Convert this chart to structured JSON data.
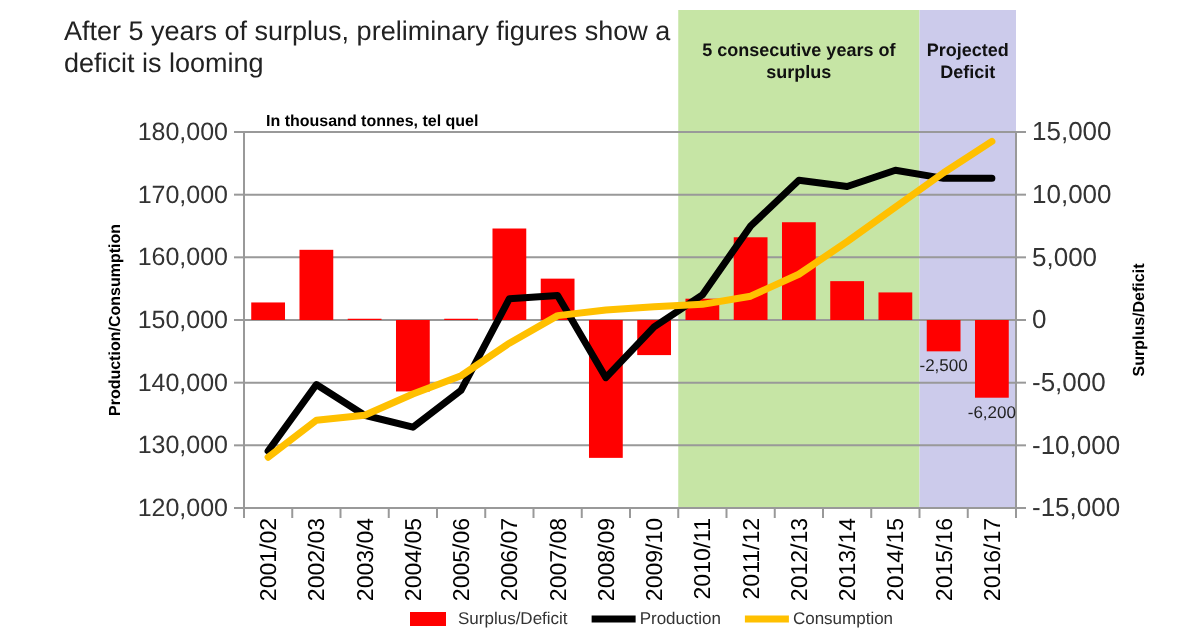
{
  "chart_data": {
    "type": "bar",
    "title": "After 5 years of surplus, preliminary figures show a deficit is looming",
    "annotations": [
      "In thousand tonnes, tel quel"
    ],
    "ylabel": "Production/Consumption",
    "y2label": "Surplus/Deficit",
    "categories": [
      "2001/02",
      "2002/03",
      "2003/04",
      "2004/05",
      "2005/06",
      "2006/07",
      "2007/08",
      "2008/09",
      "2009/10",
      "2010/11",
      "2011/12",
      "2012/13",
      "2013/14",
      "2014/15",
      "2015/16",
      "2016/17"
    ],
    "series": [
      {
        "name": "Surplus/Deficit",
        "axis": "y2",
        "color": "#ff0000",
        "values": [
          1400,
          5600,
          100,
          -5700,
          100,
          7300,
          3300,
          -11000,
          -2800,
          1700,
          6600,
          7800,
          3100,
          2200,
          -2500,
          -6200
        ],
        "value_labels": [
          null,
          null,
          null,
          null,
          null,
          null,
          null,
          null,
          null,
          null,
          null,
          null,
          null,
          null,
          "-2,500",
          "-6,200"
        ]
      },
      {
        "name": "Production",
        "type": "line",
        "color": "#000000",
        "values": [
          129100,
          139700,
          134800,
          132900,
          138800,
          153400,
          153900,
          140800,
          148900,
          154000,
          165000,
          172300,
          171300,
          173900,
          172600,
          172600
        ]
      },
      {
        "name": "Consumption",
        "type": "line",
        "color": "#ffc000",
        "values": [
          128100,
          134000,
          134800,
          138200,
          141100,
          146300,
          150700,
          151600,
          152100,
          152500,
          153800,
          157300,
          162500,
          168000,
          173500,
          178500
        ]
      }
    ],
    "ylim": [
      120000,
      180000
    ],
    "yticks": [
      {
        "value": 120000,
        "label": "120,000"
      },
      {
        "value": 130000,
        "label": "130,000"
      },
      {
        "value": 140000,
        "label": "140,000"
      },
      {
        "value": 150000,
        "label": "150,000"
      },
      {
        "value": 160000,
        "label": "160,000"
      },
      {
        "value": 170000,
        "label": "170,000"
      },
      {
        "value": 180000,
        "label": "180,000"
      }
    ],
    "y2lim": [
      -15000,
      15000
    ],
    "y2ticks": [
      {
        "value": -15000,
        "label": "-15,000"
      },
      {
        "value": -10000,
        "label": "-10,000"
      },
      {
        "value": -5000,
        "label": "-5,000"
      },
      0,
      {
        "value": 5000,
        "label": "5,000"
      },
      {
        "value": 10000,
        "label": "10,000"
      },
      {
        "value": 15000,
        "label": "15,000"
      }
    ],
    "bands": [
      {
        "axis": "x",
        "from": "2010/11",
        "to": "2014/15",
        "label": "5 consecutive years of surplus",
        "color": "#c6e5a5"
      },
      {
        "axis": "x",
        "from": "2015/16",
        "to": "2016/17",
        "label": "Projected Deficit",
        "color": "#cccbeb"
      }
    ],
    "grid": "y",
    "legend": "bottom",
    "marker": "none",
    "line_style": "solid"
  }
}
